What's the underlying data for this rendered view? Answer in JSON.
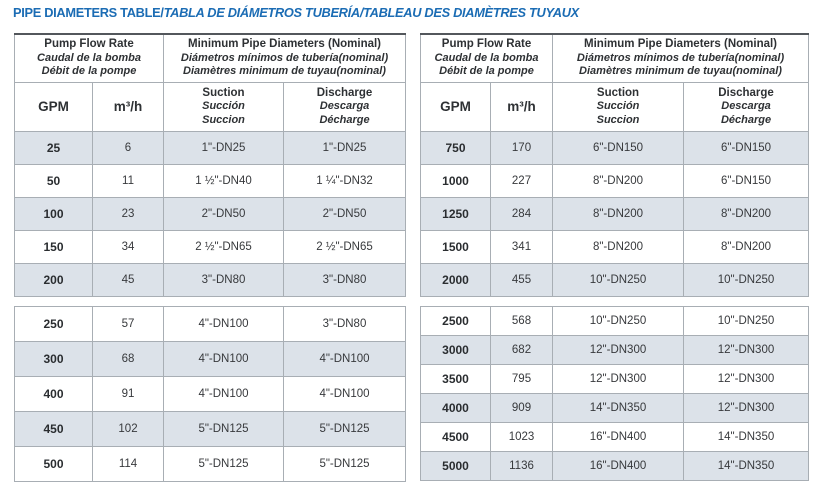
{
  "title": {
    "main": "PIPE DIAMETERS TABLE/",
    "translations": "TABLA DE DIÁMETROS TUBERÍA/TABLEAU DES DIAMÈTRES TUYAUX"
  },
  "colors": {
    "title_blue": "#1b6cb4",
    "row_shade": "#dce2e9",
    "border_gray": "#a8aeb4",
    "text_dark": "#37393c"
  },
  "header": {
    "flow_group": {
      "en": "Pump Flow Rate",
      "es": "Caudal de la bomba",
      "fr": "Débit de la pompe"
    },
    "diameter_group": {
      "en": "Minimum Pipe Diameters (Nominal)",
      "es": "Diámetros mínimos de tubería(nominal)",
      "fr": "Diamètres minimum de tuyau(nominal)"
    },
    "gpm": "GPM",
    "m3h": "m³/h",
    "suction": {
      "en": "Suction",
      "es": "Succión",
      "fr": "Succion"
    },
    "discharge": {
      "en": "Discharge",
      "es": "Descarga",
      "fr": "Décharge"
    }
  },
  "left_table": {
    "block1": [
      [
        "25",
        "6",
        "1\"-DN25",
        "1\"-DN25"
      ],
      [
        "50",
        "11",
        "1 ½\"-DN40",
        "1 ¼\"-DN32"
      ],
      [
        "100",
        "23",
        "2\"-DN50",
        "2\"-DN50"
      ],
      [
        "150",
        "34",
        "2 ½\"-DN65",
        "2 ½\"-DN65"
      ],
      [
        "200",
        "45",
        "3\"-DN80",
        "3\"-DN80"
      ]
    ],
    "block2": [
      [
        "250",
        "57",
        "4\"-DN100",
        "3\"-DN80"
      ],
      [
        "300",
        "68",
        "4\"-DN100",
        "4\"-DN100"
      ],
      [
        "400",
        "91",
        "4\"-DN100",
        "4\"-DN100"
      ],
      [
        "450",
        "102",
        "5\"-DN125",
        "5\"-DN125"
      ],
      [
        "500",
        "114",
        "5\"-DN125",
        "5\"-DN125"
      ]
    ]
  },
  "right_table": {
    "block1": [
      [
        "750",
        "170",
        "6\"-DN150",
        "6\"-DN150"
      ],
      [
        "1000",
        "227",
        "8\"-DN200",
        "6\"-DN150"
      ],
      [
        "1250",
        "284",
        "8\"-DN200",
        "8\"-DN200"
      ],
      [
        "1500",
        "341",
        "8\"-DN200",
        "8\"-DN200"
      ],
      [
        "2000",
        "455",
        "10\"-DN250",
        "10\"-DN250"
      ]
    ],
    "block2": [
      [
        "2500",
        "568",
        "10\"-DN250",
        "10\"-DN250"
      ],
      [
        "3000",
        "682",
        "12\"-DN300",
        "12\"-DN300"
      ],
      [
        "3500",
        "795",
        "12\"-DN300",
        "12\"-DN300"
      ],
      [
        "4000",
        "909",
        "14\"-DN350",
        "12\"-DN300"
      ],
      [
        "4500",
        "1023",
        "16\"-DN400",
        "14\"-DN350"
      ],
      [
        "5000",
        "1136",
        "16\"-DN400",
        "14\"-DN350"
      ]
    ]
  }
}
